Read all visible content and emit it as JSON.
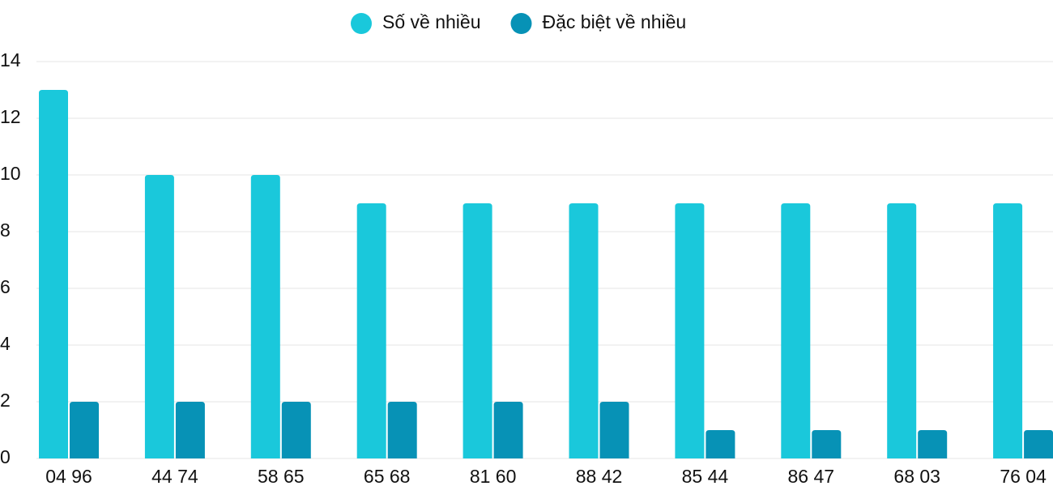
{
  "chart_data": {
    "type": "bar",
    "categories": [
      "04 96",
      "44 74",
      "58 65",
      "65 68",
      "81 60",
      "88 42",
      "85 44",
      "86 47",
      "68 03",
      "76 04"
    ],
    "series": [
      {
        "name": "Số về nhiều",
        "color": "#1ac8db",
        "values": [
          13,
          10,
          10,
          9,
          9,
          9,
          9,
          9,
          9,
          9
        ]
      },
      {
        "name": "Đặc biệt về nhiều",
        "color": "#0792b6",
        "values": [
          2,
          2,
          2,
          2,
          2,
          2,
          1,
          1,
          1,
          1
        ]
      }
    ],
    "ylim": [
      0,
      14
    ],
    "yticks": [
      0,
      2,
      4,
      6,
      8,
      10,
      12,
      14
    ],
    "grid": true,
    "legend": "top"
  }
}
